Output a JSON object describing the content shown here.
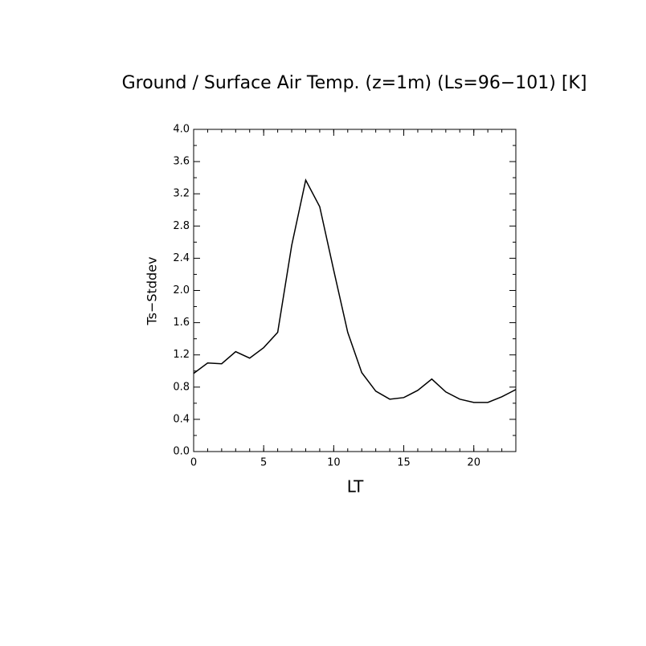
{
  "chart_data": {
    "type": "line",
    "title": "Ground / Surface Air Temp. (z=1m) (Ls=96−101) [K]",
    "x_label": "LT",
    "y_label": "Ts−Stddev",
    "x": [
      0,
      1,
      2,
      3,
      4,
      5,
      6,
      7,
      8,
      9,
      10,
      11,
      12,
      13,
      14,
      15,
      16,
      17,
      18,
      19,
      20,
      21,
      22,
      23
    ],
    "series": [
      {
        "name": "Ts-Stddev",
        "color": "#000000",
        "values": [
          0.97,
          1.1,
          1.09,
          1.24,
          1.16,
          1.29,
          1.48,
          2.56,
          3.37,
          3.04,
          2.25,
          1.48,
          0.98,
          0.75,
          0.65,
          0.67,
          0.76,
          0.9,
          0.74,
          0.65,
          0.61,
          0.61,
          0.68,
          0.77
        ]
      }
    ],
    "xlim": [
      0,
      23
    ],
    "xticks": [
      0,
      5,
      10,
      15,
      20
    ],
    "ylim": [
      0,
      4
    ],
    "yticks": [
      {
        "value": 0,
        "label": "0.0"
      },
      0.4,
      0.8,
      1.2,
      1.6,
      {
        "value": 2,
        "label": "2.0"
      },
      2.4,
      2.8,
      3.2,
      3.6,
      {
        "value": 4,
        "label": "4.0"
      }
    ]
  }
}
